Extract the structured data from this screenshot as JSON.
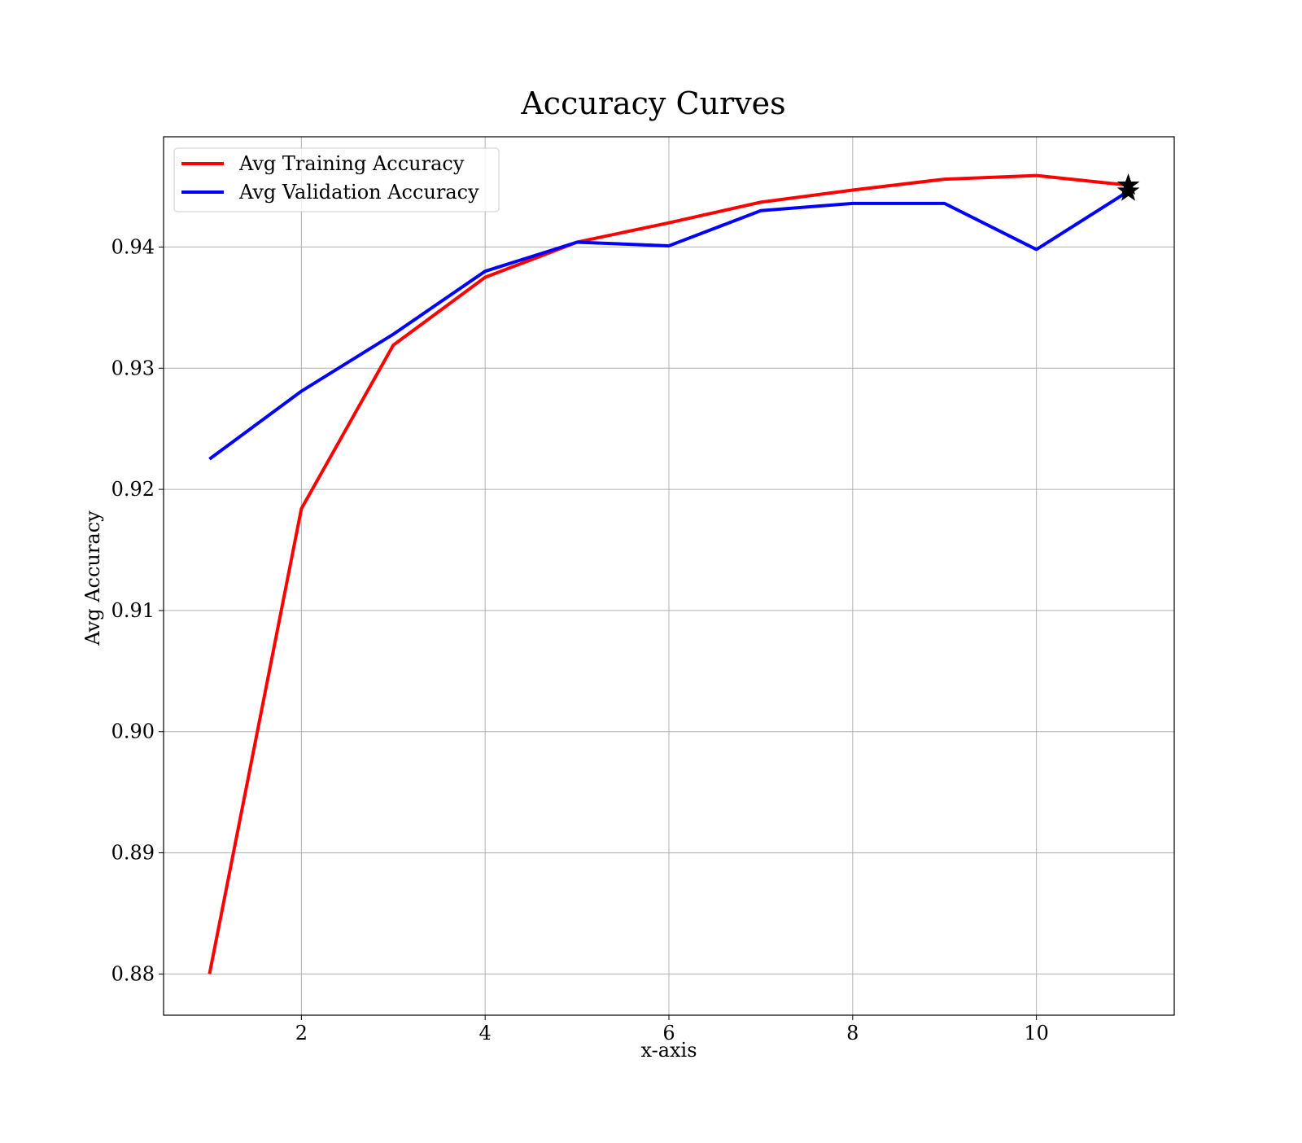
{
  "chart_data": {
    "type": "line",
    "title": "Accuracy Curves",
    "xlabel": "x-axis",
    "ylabel": "Avg Accuracy",
    "xlim": [
      0.5,
      11.5
    ],
    "ylim": [
      0.8766,
      0.9491
    ],
    "xticks": [
      2,
      4,
      6,
      8,
      10
    ],
    "yticks": [
      0.88,
      0.89,
      0.9,
      0.91,
      0.92,
      0.93,
      0.94
    ],
    "ytick_labels": [
      "0.88",
      "0.89",
      "0.90",
      "0.91",
      "0.92",
      "0.93",
      "0.94"
    ],
    "grid": true,
    "legend_position": "upper-left",
    "x": [
      1,
      2,
      3,
      4,
      5,
      6,
      7,
      8,
      9,
      10,
      11
    ],
    "series": [
      {
        "name": "Avg Training Accuracy",
        "color": "#ff0000",
        "values": [
          0.88,
          0.9184,
          0.9319,
          0.9375,
          0.9404,
          0.942,
          0.9437,
          0.9447,
          0.9456,
          0.9459,
          0.9451
        ]
      },
      {
        "name": "Avg Validation Accuracy",
        "color": "#0000ff",
        "values": [
          0.9225,
          0.9281,
          0.9328,
          0.938,
          0.9404,
          0.9401,
          0.943,
          0.9436,
          0.9436,
          0.9398,
          0.9446
        ]
      }
    ],
    "markers": [
      {
        "x": 11,
        "y": 0.9451,
        "symbol": "star",
        "color": "#000000"
      },
      {
        "x": 11,
        "y": 0.9446,
        "symbol": "star",
        "color": "#000000"
      }
    ]
  }
}
